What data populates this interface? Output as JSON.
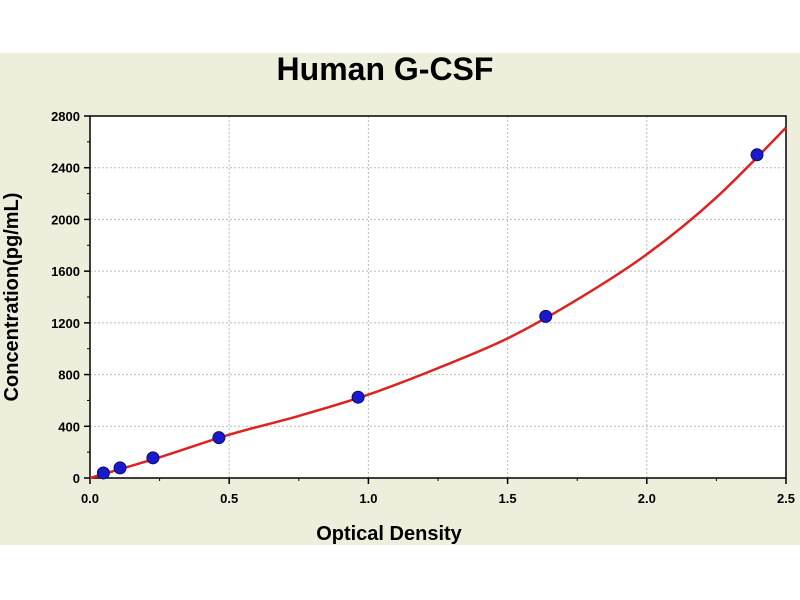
{
  "chart_data": {
    "type": "scatter",
    "title": "Human G-CSF",
    "xlabel": "Optical Density",
    "ylabel": "Concentration(pg/mL)",
    "xlim": [
      0,
      2.5
    ],
    "ylim": [
      0,
      2800
    ],
    "x_ticks": [
      "0.0",
      "0.5",
      "1.0",
      "1.5",
      "2.0",
      "2.5"
    ],
    "y_ticks": [
      "0",
      "400",
      "800",
      "1200",
      "1600",
      "2000",
      "2400",
      "2800"
    ],
    "grid": true,
    "series": [
      {
        "kind": "points",
        "x": [
          0.048,
          0.108,
          0.226,
          0.463,
          0.963,
          1.637,
          2.396
        ],
        "y": [
          39,
          78,
          156,
          312,
          625,
          1250,
          2500
        ]
      },
      {
        "kind": "fit-curve",
        "x": [
          0.0,
          0.25,
          0.5,
          0.75,
          1.0,
          1.25,
          1.5,
          1.75,
          2.0,
          2.25,
          2.5
        ],
        "y": [
          0,
          160,
          335,
          480,
          645,
          850,
          1080,
          1380,
          1730,
          2170,
          2710
        ]
      }
    ],
    "colors": {
      "background": "#eeeedd",
      "plot_background": "#ffffff",
      "curve": "#dd2222",
      "points": "#1a1acc",
      "grid": "#bbbbbb"
    }
  }
}
